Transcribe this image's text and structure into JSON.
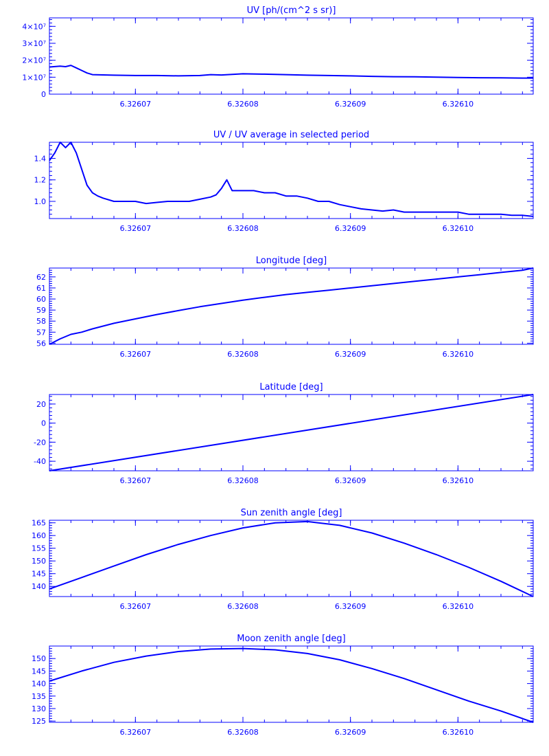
{
  "chart_data": [
    {
      "type": "line",
      "title": "UV [ph/(cm^2 s sr)]",
      "xlabel": "",
      "ylabel": "",
      "xlim": [
        6.326062,
        6.326107
      ],
      "ylim": [
        0,
        45000000
      ],
      "xticks": [
        6.32607,
        6.32608,
        6.32609,
        6.3261
      ],
      "xtick_labels": [
        "6.32607",
        "6.32608",
        "6.32609",
        "6.32610"
      ],
      "yticks": [
        0,
        10000000,
        20000000,
        30000000,
        40000000
      ],
      "ytick_labels": [
        "0",
        "1×10⁷",
        "2×10⁷",
        "3×10⁷",
        "4×10⁷"
      ],
      "grid": false,
      "color": "#0000ff",
      "series": [
        {
          "x": [
            6.326062,
            6.326063,
            6.3260635,
            6.326064,
            6.3260645,
            6.326065,
            6.3260655,
            6.326066,
            6.326068,
            6.32607,
            6.326072,
            6.326074,
            6.326076,
            6.326077,
            6.326078,
            6.32608,
            6.326082,
            6.326084,
            6.326086,
            6.326088,
            6.32609,
            6.326092,
            6.326094,
            6.326096,
            6.326098,
            6.3261,
            6.326102,
            6.326104,
            6.326106,
            6.326107
          ],
          "y": [
            16000000,
            16500000,
            16200000,
            17000000,
            15500000,
            14000000,
            12500000,
            11500000,
            11200000,
            11000000,
            11000000,
            10800000,
            11000000,
            11500000,
            11300000,
            12000000,
            11800000,
            11500000,
            11200000,
            11000000,
            10800000,
            10500000,
            10300000,
            10200000,
            10000000,
            9800000,
            9700000,
            9600000,
            9500000,
            9500000
          ]
        }
      ]
    },
    {
      "type": "line",
      "title": "UV / UV average in selected period",
      "xlabel": "",
      "ylabel": "",
      "xlim": [
        6.326062,
        6.326107
      ],
      "ylim": [
        0.84,
        1.55
      ],
      "xticks": [
        6.32607,
        6.32608,
        6.32609,
        6.3261
      ],
      "xtick_labels": [
        "6.32607",
        "6.32608",
        "6.32609",
        "6.32610"
      ],
      "yticks": [
        1.0,
        1.2,
        1.4
      ],
      "ytick_labels": [
        "1.0",
        "1.2",
        "1.4"
      ],
      "grid": false,
      "color": "#0000ff",
      "series": [
        {
          "x": [
            6.326062,
            6.3260625,
            6.326063,
            6.3260635,
            6.326064,
            6.3260645,
            6.326065,
            6.3260655,
            6.326066,
            6.3260665,
            6.326067,
            6.326068,
            6.326069,
            6.32607,
            6.326071,
            6.326072,
            6.326073,
            6.326074,
            6.326075,
            6.326076,
            6.326077,
            6.3260775,
            6.326078,
            6.3260785,
            6.326079,
            6.32608,
            6.326081,
            6.326082,
            6.326083,
            6.326084,
            6.326085,
            6.326086,
            6.326087,
            6.326088,
            6.326089,
            6.32609,
            6.326091,
            6.326092,
            6.326093,
            6.326094,
            6.326095,
            6.326096,
            6.326097,
            6.326098,
            6.326099,
            6.3261,
            6.326101,
            6.326102,
            6.326103,
            6.326104,
            6.326105,
            6.326106,
            6.326107
          ],
          "y": [
            1.38,
            1.45,
            1.55,
            1.5,
            1.55,
            1.45,
            1.3,
            1.15,
            1.08,
            1.05,
            1.03,
            1.0,
            1.0,
            1.0,
            0.98,
            0.99,
            1.0,
            1.0,
            1.0,
            1.02,
            1.04,
            1.06,
            1.12,
            1.2,
            1.1,
            1.1,
            1.1,
            1.08,
            1.08,
            1.05,
            1.05,
            1.03,
            1.0,
            1.0,
            0.97,
            0.95,
            0.93,
            0.92,
            0.91,
            0.92,
            0.9,
            0.9,
            0.9,
            0.9,
            0.9,
            0.9,
            0.88,
            0.88,
            0.88,
            0.88,
            0.87,
            0.87,
            0.86
          ]
        }
      ]
    },
    {
      "type": "line",
      "title": "Longitude [deg]",
      "xlabel": "",
      "ylabel": "",
      "xlim": [
        6.326062,
        6.326107
      ],
      "ylim": [
        55.9,
        62.8
      ],
      "xticks": [
        6.32607,
        6.32608,
        6.32609,
        6.3261
      ],
      "xtick_labels": [
        "6.32607",
        "6.32608",
        "6.32609",
        "6.32610"
      ],
      "yticks": [
        56,
        57,
        58,
        59,
        60,
        61,
        62
      ],
      "ytick_labels": [
        "56",
        "57",
        "58",
        "59",
        "60",
        "61",
        "62"
      ],
      "grid": false,
      "color": "#0000ff",
      "series": [
        {
          "x": [
            6.326062,
            6.326063,
            6.326064,
            6.326065,
            6.326066,
            6.326068,
            6.32607,
            6.326072,
            6.326074,
            6.326076,
            6.326078,
            6.32608,
            6.326082,
            6.326084,
            6.326086,
            6.326088,
            6.32609,
            6.326092,
            6.326094,
            6.326096,
            6.326098,
            6.3261,
            6.326102,
            6.326104,
            6.326106,
            6.326107
          ],
          "y": [
            55.9,
            56.4,
            56.8,
            57.0,
            57.3,
            57.8,
            58.2,
            58.6,
            58.95,
            59.3,
            59.6,
            59.9,
            60.15,
            60.4,
            60.6,
            60.8,
            61.0,
            61.2,
            61.4,
            61.6,
            61.8,
            62.0,
            62.2,
            62.4,
            62.6,
            62.8
          ]
        }
      ]
    },
    {
      "type": "line",
      "title": "Latitude [deg]",
      "xlabel": "",
      "ylabel": "",
      "xlim": [
        6.326062,
        6.326107
      ],
      "ylim": [
        -50,
        30
      ],
      "xticks": [
        6.32607,
        6.32608,
        6.32609,
        6.3261
      ],
      "xtick_labels": [
        "6.32607",
        "6.32608",
        "6.32609",
        "6.32610"
      ],
      "yticks": [
        -40,
        -20,
        0,
        20
      ],
      "ytick_labels": [
        "-40",
        "-20",
        "0",
        "20"
      ],
      "grid": false,
      "color": "#0000ff",
      "series": [
        {
          "x": [
            6.326062,
            6.326107
          ],
          "y": [
            -50,
            30
          ]
        }
      ]
    },
    {
      "type": "line",
      "title": "Sun zenith angle [deg]",
      "xlabel": "",
      "ylabel": "",
      "xlim": [
        6.326062,
        6.326107
      ],
      "ylim": [
        136,
        166
      ],
      "xticks": [
        6.32607,
        6.32608,
        6.32609,
        6.3261
      ],
      "xtick_labels": [
        "6.32607",
        "6.32608",
        "6.32609",
        "6.32610"
      ],
      "yticks": [
        140,
        145,
        150,
        155,
        160,
        165
      ],
      "ytick_labels": [
        "140",
        "145",
        "150",
        "155",
        "160",
        "165"
      ],
      "grid": false,
      "color": "#0000ff",
      "series": [
        {
          "x": [
            6.326062,
            6.326065,
            6.326068,
            6.326071,
            6.326074,
            6.326077,
            6.32608,
            6.326083,
            6.326086,
            6.326089,
            6.326092,
            6.326095,
            6.326098,
            6.326101,
            6.326104,
            6.326107
          ],
          "y": [
            139,
            143.5,
            148,
            152.5,
            156.5,
            160,
            163,
            165,
            165.5,
            164,
            161,
            157,
            152.5,
            147.5,
            142,
            136
          ]
        }
      ]
    },
    {
      "type": "line",
      "title": "Moon zenith angle [deg]",
      "xlabel": "",
      "ylabel": "",
      "xlim": [
        6.326062,
        6.326107
      ],
      "ylim": [
        124.5,
        155
      ],
      "xticks": [
        6.32607,
        6.32608,
        6.32609,
        6.3261
      ],
      "xtick_labels": [
        "6.32607",
        "6.32608",
        "6.32609",
        "6.32610"
      ],
      "yticks": [
        125,
        130,
        135,
        140,
        145,
        150
      ],
      "ytick_labels": [
        "125",
        "130",
        "135",
        "140",
        "145",
        "150"
      ],
      "grid": false,
      "color": "#0000ff",
      "series": [
        {
          "x": [
            6.326062,
            6.326065,
            6.326068,
            6.326071,
            6.326074,
            6.326077,
            6.32608,
            6.326083,
            6.326086,
            6.326089,
            6.326092,
            6.326095,
            6.326098,
            6.326101,
            6.326104,
            6.326107
          ],
          "y": [
            141,
            145,
            148.5,
            151,
            152.8,
            153.8,
            154,
            153.5,
            152,
            149.5,
            146,
            142,
            137.5,
            133,
            129,
            124.5
          ]
        }
      ]
    }
  ]
}
